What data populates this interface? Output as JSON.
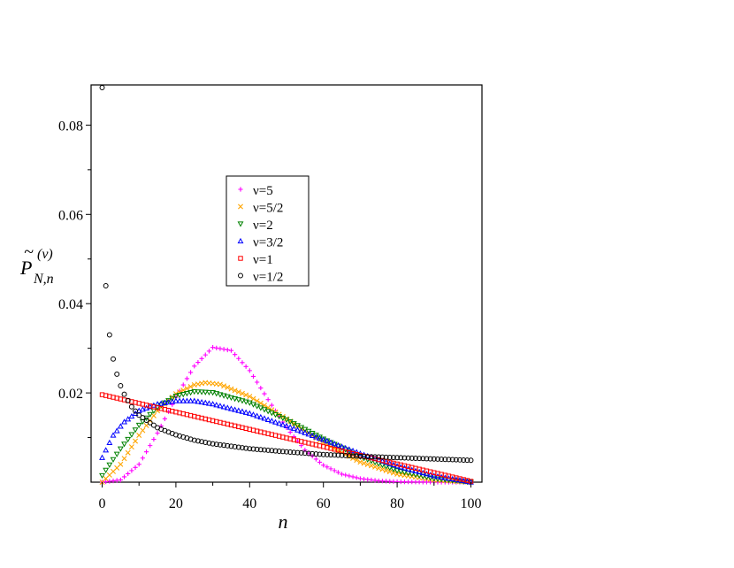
{
  "chart_data": {
    "type": "scatter",
    "title": "",
    "xlabel": "n",
    "ylabel": {
      "tilde": "~",
      "main": "P",
      "subscript": "N,n",
      "superscript": "(ν)"
    },
    "xlim": [
      -3,
      103
    ],
    "ylim": [
      0,
      0.089
    ],
    "x_ticks": [
      0,
      20,
      40,
      60,
      80,
      100
    ],
    "x_tick_labels": [
      "0",
      "20",
      "40",
      "60",
      "80",
      "100"
    ],
    "y_ticks": [
      0.02,
      0.04,
      0.06,
      0.08
    ],
    "y_tick_labels": [
      "0.02",
      "0.04",
      "0.06",
      "0.08"
    ],
    "grid": false,
    "legend_placement": "center",
    "series": [
      {
        "name": "ν=5",
        "color": "#ff00ff",
        "marker": "plus",
        "x_start": 0,
        "x_end": 100,
        "x_step": 1,
        "anchor_points": [
          [
            0,
            0.0
          ],
          [
            5,
            0.0005
          ],
          [
            10,
            0.004
          ],
          [
            15,
            0.011
          ],
          [
            20,
            0.019
          ],
          [
            25,
            0.026
          ],
          [
            30,
            0.0302
          ],
          [
            35,
            0.0295
          ],
          [
            40,
            0.025
          ],
          [
            45,
            0.0185
          ],
          [
            50,
            0.0122
          ],
          [
            55,
            0.0072
          ],
          [
            60,
            0.0038
          ],
          [
            65,
            0.0018
          ],
          [
            70,
            0.0008
          ],
          [
            75,
            0.0003
          ],
          [
            80,
            0.0001
          ],
          [
            90,
            0.0
          ],
          [
            100,
            0.0
          ]
        ]
      },
      {
        "name": "ν=5/2",
        "color": "#ffa500",
        "marker": "x",
        "x_start": 0,
        "x_end": 100,
        "x_step": 1,
        "anchor_points": [
          [
            0,
            0.0
          ],
          [
            5,
            0.004
          ],
          [
            10,
            0.0105
          ],
          [
            15,
            0.016
          ],
          [
            20,
            0.0198
          ],
          [
            25,
            0.0218
          ],
          [
            28,
            0.0223
          ],
          [
            32,
            0.0219
          ],
          [
            40,
            0.0192
          ],
          [
            50,
            0.0142
          ],
          [
            60,
            0.0088
          ],
          [
            70,
            0.0045
          ],
          [
            80,
            0.0018
          ],
          [
            90,
            0.0005
          ],
          [
            100,
            0.0
          ]
        ]
      },
      {
        "name": "ν=2",
        "color": "#008000",
        "marker": "triangle-down",
        "x_start": 0,
        "x_end": 100,
        "x_step": 1,
        "anchor_points": [
          [
            0,
            0.0015
          ],
          [
            5,
            0.0075
          ],
          [
            10,
            0.0128
          ],
          [
            15,
            0.0168
          ],
          [
            20,
            0.0193
          ],
          [
            25,
            0.0203
          ],
          [
            30,
            0.0201
          ],
          [
            40,
            0.0178
          ],
          [
            50,
            0.014
          ],
          [
            60,
            0.0097
          ],
          [
            70,
            0.0057
          ],
          [
            80,
            0.0026
          ],
          [
            90,
            0.0008
          ],
          [
            100,
            0.0
          ]
        ]
      },
      {
        "name": "ν=3/2",
        "color": "#0000ff",
        "marker": "triangle-up",
        "x_start": 0,
        "x_end": 100,
        "x_step": 1,
        "anchor_points": [
          [
            0,
            0.0055
          ],
          [
            3,
            0.0105
          ],
          [
            6,
            0.0135
          ],
          [
            10,
            0.016
          ],
          [
            15,
            0.0175
          ],
          [
            20,
            0.0182
          ],
          [
            25,
            0.0182
          ],
          [
            30,
            0.0175
          ],
          [
            40,
            0.0154
          ],
          [
            50,
            0.0126
          ],
          [
            60,
            0.0095
          ],
          [
            70,
            0.0064
          ],
          [
            80,
            0.0036
          ],
          [
            90,
            0.0014
          ],
          [
            100,
            0.0
          ]
        ]
      },
      {
        "name": "ν=1",
        "color": "#ff0000",
        "marker": "square",
        "x_start": 0,
        "x_end": 100,
        "x_step": 1,
        "anchor_points": [
          [
            0,
            0.0196
          ],
          [
            100,
            0.0002
          ]
        ]
      },
      {
        "name": "ν=1/2",
        "color": "#000000",
        "marker": "circle",
        "x_start": 0,
        "x_end": 100,
        "x_step": 1,
        "anchor_points": [
          [
            0,
            0.0884
          ],
          [
            1,
            0.044
          ],
          [
            2,
            0.033
          ],
          [
            3,
            0.0276
          ],
          [
            4,
            0.0242
          ],
          [
            5,
            0.0216
          ],
          [
            6,
            0.0197
          ],
          [
            8,
            0.0169
          ],
          [
            10,
            0.015
          ],
          [
            15,
            0.0122
          ],
          [
            20,
            0.0106
          ],
          [
            25,
            0.0094
          ],
          [
            30,
            0.0086
          ],
          [
            40,
            0.0075
          ],
          [
            50,
            0.0068
          ],
          [
            60,
            0.0062
          ],
          [
            70,
            0.0058
          ],
          [
            80,
            0.0055
          ],
          [
            90,
            0.0052
          ],
          [
            100,
            0.0049
          ]
        ]
      }
    ]
  }
}
